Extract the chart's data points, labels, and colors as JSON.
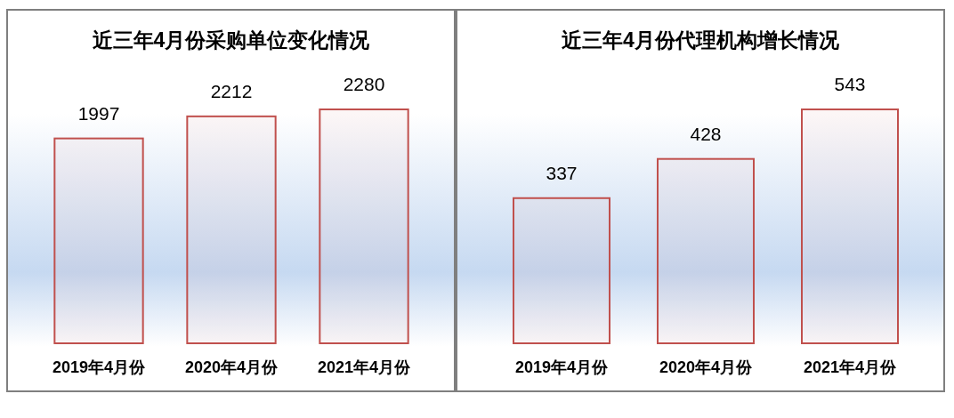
{
  "chart_data": [
    {
      "type": "bar",
      "title": "近三年4月份采购单位变化情况",
      "categories": [
        "2019年4月份",
        "2020年4月份",
        "2021年4月份"
      ],
      "values": [
        1997,
        2212,
        2280
      ],
      "color": "#c0504d",
      "data_labels": true,
      "tick_labels": "x"
    },
    {
      "type": "bar",
      "title": "近三年4月份代理机构增长情况",
      "categories": [
        "2019年4月份",
        "2020年4月份",
        "2021年4月份"
      ],
      "values": [
        337,
        428,
        543
      ],
      "color": "#c0504d",
      "data_labels": true,
      "tick_labels": "x"
    }
  ]
}
